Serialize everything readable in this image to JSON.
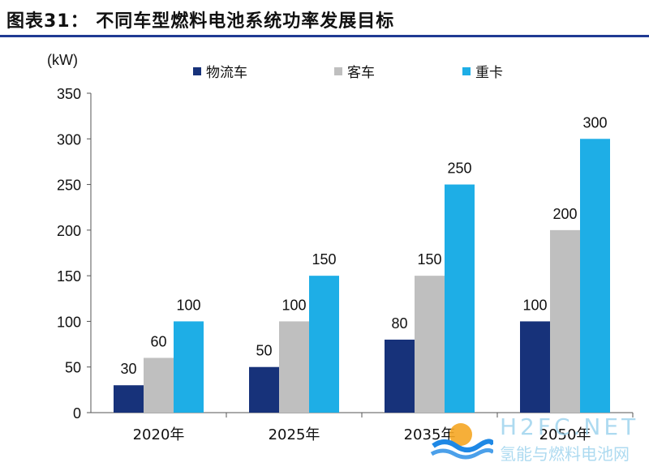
{
  "header": {
    "title": "图表31： 不同车型燃料电池系统功率发展目标"
  },
  "chart_data": {
    "type": "bar",
    "title": "",
    "ylabel": "(kW)",
    "xlabel": "",
    "ylim": [
      0,
      350
    ],
    "yticks": [
      0,
      50,
      100,
      150,
      200,
      250,
      300,
      350
    ],
    "categories": [
      "2020年",
      "2025年",
      "2035年",
      "2050年"
    ],
    "series": [
      {
        "name": "物流车",
        "color": "#17327a",
        "values": [
          30,
          50,
          80,
          100
        ]
      },
      {
        "name": "客车",
        "color": "#bfbfbf",
        "values": [
          60,
          100,
          150,
          200
        ]
      },
      {
        "name": "重卡",
        "color": "#1eaee6",
        "values": [
          100,
          150,
          250,
          300
        ]
      }
    ],
    "legend_position": "top",
    "grid": false
  },
  "watermark": {
    "brand": "H2FC.NET",
    "subtitle": "氢能与燃料电池网"
  }
}
